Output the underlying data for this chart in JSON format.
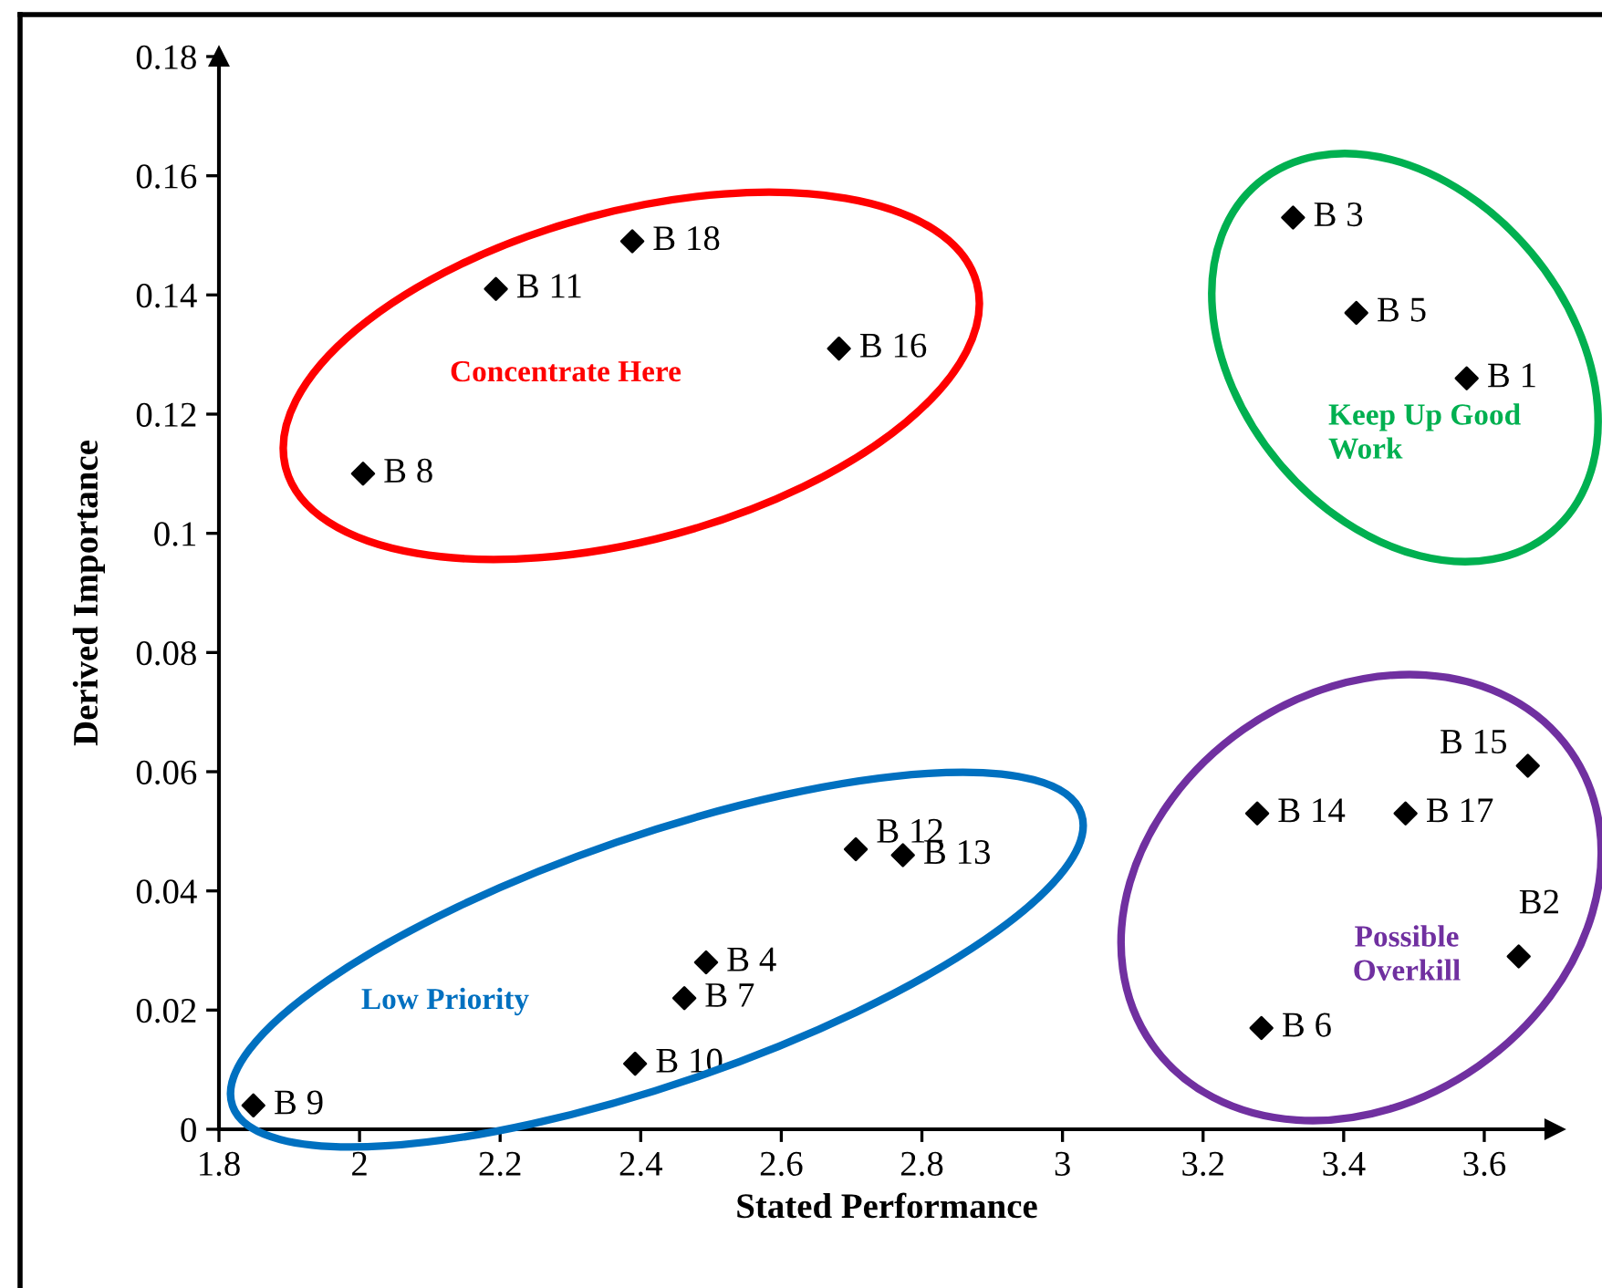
{
  "chart_data": {
    "type": "scatter",
    "xlabel": "Stated Performance",
    "ylabel": "Derived Importance",
    "x": [
      3.575,
      3.649,
      3.328,
      2.493,
      3.418,
      3.283,
      2.462,
      2.005,
      1.849,
      2.392,
      2.194,
      2.706,
      2.773,
      3.277,
      3.662,
      2.682,
      3.488,
      2.388
    ],
    "series": [
      {
        "color": "#000000",
        "values": [
          0.126,
          0.029,
          0.153,
          0.028,
          0.137,
          0.017,
          0.022,
          0.11,
          0.004,
          0.011,
          0.141,
          0.047,
          0.046,
          0.053,
          0.061,
          0.131,
          0.053,
          0.149
        ]
      }
    ],
    "marker": "diamond",
    "grid": false,
    "legend": false,
    "xlim": [
      1.8,
      3.7
    ],
    "xticks": [
      1.8,
      2,
      2.2,
      2.4,
      2.6,
      2.8,
      3,
      3.2,
      3.4,
      3.6
    ],
    "ylim": [
      0,
      0.18
    ],
    "yticks": [
      0,
      0.02,
      0.04,
      0.06,
      0.08,
      0.1,
      0.12,
      0.14,
      0.16,
      0.18
    ],
    "annotations": [
      {
        "text": "B 1",
        "x": 3.575,
        "y": 0.126
      },
      {
        "text": "B2",
        "x": 3.649,
        "y": 0.029
      },
      {
        "text": "B 3",
        "x": 3.328,
        "y": 0.153
      },
      {
        "text": "B 4",
        "x": 2.493,
        "y": 0.028
      },
      {
        "text": "B 5",
        "x": 3.418,
        "y": 0.137
      },
      {
        "text": "B 6",
        "x": 3.283,
        "y": 0.017
      },
      {
        "text": "B 7",
        "x": 2.462,
        "y": 0.022
      },
      {
        "text": "B 8",
        "x": 2.005,
        "y": 0.11
      },
      {
        "text": "B 9",
        "x": 1.849,
        "y": 0.004
      },
      {
        "text": "B 10",
        "x": 2.392,
        "y": 0.011
      },
      {
        "text": "B 11",
        "x": 2.194,
        "y": 0.141
      },
      {
        "text": "B 12",
        "x": 2.706,
        "y": 0.047
      },
      {
        "text": "B 13",
        "x": 2.773,
        "y": 0.046
      },
      {
        "text": "B 14",
        "x": 3.277,
        "y": 0.053
      },
      {
        "text": "B 15",
        "x": 3.662,
        "y": 0.061
      },
      {
        "text": "B 16",
        "x": 2.682,
        "y": 0.131
      },
      {
        "text": "B 17",
        "x": 3.488,
        "y": 0.053
      },
      {
        "text": "B 18",
        "x": 2.388,
        "y": 0.149
      },
      "Concentrate Here",
      "Keep Up Good\nWork",
      "Low Priority",
      "Possible\nOverkill"
    ]
  }
}
